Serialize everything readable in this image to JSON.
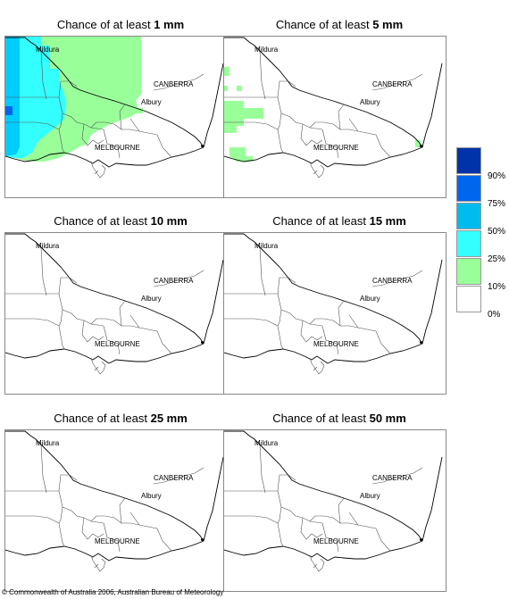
{
  "panels": [
    {
      "title_prefix": "Chance of at least ",
      "title_amount": "1 mm"
    },
    {
      "title_prefix": "Chance of at least ",
      "title_amount": "5 mm"
    },
    {
      "title_prefix": "Chance of at least ",
      "title_amount": "10 mm"
    },
    {
      "title_prefix": "Chance of at least ",
      "title_amount": "15 mm"
    },
    {
      "title_prefix": "Chance of at least ",
      "title_amount": "25 mm"
    },
    {
      "title_prefix": "Chance of at least ",
      "title_amount": "50 mm"
    }
  ],
  "places": {
    "mildura": "Mildura",
    "canberra": "CANBERRA",
    "albury": "Albury",
    "melbourne": "MELBOURNE"
  },
  "legend": {
    "labels": [
      "90%",
      "75%",
      "50%",
      "25%",
      "10%",
      "0%"
    ],
    "colors": [
      "#0033aa",
      "#0066ee",
      "#00bbee",
      "#33ffff",
      "#99ff99",
      "#ffffff"
    ]
  },
  "colors": {
    "border": "#555555",
    "coast": "#000000",
    "pale_green": "#99ff99",
    "cyan": "#33ffff",
    "sky": "#00ccff",
    "blue": "#0066ee"
  },
  "copyright": "© Commonwealth of Australia 2006, Australian Bureau of Meteorology"
}
